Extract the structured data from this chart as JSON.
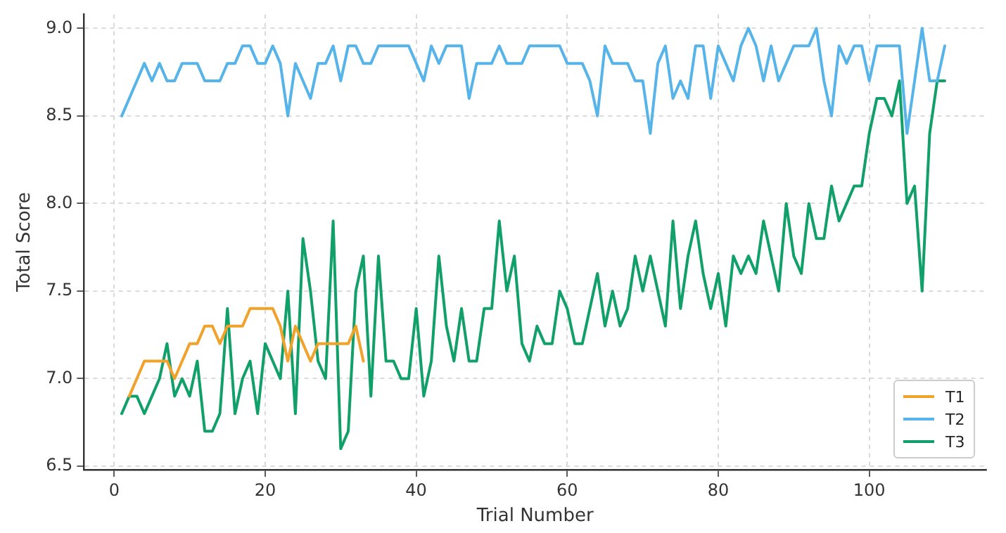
{
  "chart_data": {
    "type": "line",
    "xlabel": "Trial Number",
    "ylabel": "Total Score",
    "xlim": [
      -4,
      115.5
    ],
    "xticks": [
      0,
      20,
      40,
      60,
      80,
      100
    ],
    "ylim": [
      6.48,
      9.08
    ],
    "yticks": [
      {
        "value": 6.5,
        "label": "6.5"
      },
      {
        "value": 7,
        "label": "7.0"
      },
      {
        "value": 7.5,
        "label": "7.5"
      },
      {
        "value": 8,
        "label": "8.0"
      },
      {
        "value": 8.5,
        "label": "8.5"
      },
      {
        "value": 9,
        "label": "9.0"
      }
    ],
    "grid": true,
    "legend": "bottom right",
    "marker": "none",
    "line_style": "solid",
    "series": [
      {
        "name": "T1",
        "color": "#f0a22a",
        "x": [
          2,
          3,
          4,
          5,
          6,
          7,
          8,
          9,
          10,
          11,
          12,
          13,
          14,
          15,
          16,
          17,
          18,
          19,
          20,
          21,
          22,
          23,
          24,
          25,
          26,
          27,
          28,
          29,
          30,
          31,
          32,
          33
        ],
        "values": [
          6.9,
          7.0,
          7.1,
          7.1,
          7.1,
          7.1,
          7.0,
          7.1,
          7.2,
          7.2,
          7.3,
          7.3,
          7.2,
          7.3,
          7.3,
          7.3,
          7.4,
          7.4,
          7.4,
          7.4,
          7.3,
          7.1,
          7.3,
          7.2,
          7.1,
          7.2,
          7.2,
          7.2,
          7.2,
          7.2,
          7.3,
          7.1
        ]
      },
      {
        "name": "T2",
        "color": "#56b4e9",
        "x": [
          1,
          2,
          3,
          4,
          5,
          6,
          7,
          8,
          9,
          10,
          11,
          12,
          13,
          14,
          15,
          16,
          17,
          18,
          19,
          20,
          21,
          22,
          23,
          24,
          25,
          26,
          27,
          28,
          29,
          30,
          31,
          32,
          33,
          34,
          35,
          36,
          37,
          38,
          39,
          40,
          41,
          42,
          43,
          44,
          45,
          46,
          47,
          48,
          49,
          50,
          51,
          52,
          53,
          54,
          55,
          56,
          57,
          58,
          59,
          60,
          61,
          62,
          63,
          64,
          65,
          66,
          67,
          68,
          69,
          70,
          71,
          72,
          73,
          74,
          75,
          76,
          77,
          78,
          79,
          80,
          81,
          82,
          83,
          84,
          85,
          86,
          87,
          88,
          89,
          90,
          91,
          92,
          93,
          94,
          95,
          96,
          97,
          98,
          99,
          100,
          101,
          102,
          103,
          104,
          105,
          106,
          107,
          108,
          109,
          110
        ],
        "values": [
          8.5,
          8.6,
          8.7,
          8.8,
          8.7,
          8.8,
          8.7,
          8.7,
          8.8,
          8.8,
          8.8,
          8.7,
          8.7,
          8.7,
          8.8,
          8.8,
          8.9,
          8.9,
          8.8,
          8.8,
          8.9,
          8.8,
          8.5,
          8.8,
          8.7,
          8.6,
          8.8,
          8.8,
          8.9,
          8.7,
          8.9,
          8.9,
          8.8,
          8.8,
          8.9,
          8.9,
          8.9,
          8.9,
          8.9,
          8.8,
          8.7,
          8.9,
          8.8,
          8.9,
          8.9,
          8.9,
          8.6,
          8.8,
          8.8,
          8.8,
          8.9,
          8.8,
          8.8,
          8.8,
          8.9,
          8.9,
          8.9,
          8.9,
          8.9,
          8.8,
          8.8,
          8.8,
          8.7,
          8.5,
          8.9,
          8.8,
          8.8,
          8.8,
          8.7,
          8.7,
          8.4,
          8.8,
          8.9,
          8.6,
          8.7,
          8.6,
          8.9,
          8.9,
          8.6,
          8.9,
          8.8,
          8.7,
          8.9,
          9.0,
          8.9,
          8.7,
          8.9,
          8.7,
          8.8,
          8.9,
          8.9,
          8.9,
          9.0,
          8.7,
          8.5,
          8.9,
          8.8,
          8.9,
          8.9,
          8.7,
          8.9,
          8.9,
          8.9,
          8.9,
          8.4,
          8.7,
          9.0,
          8.7,
          8.7,
          8.9
        ]
      },
      {
        "name": "T3",
        "color": "#12a06a",
        "x": [
          1,
          2,
          3,
          4,
          5,
          6,
          7,
          8,
          9,
          10,
          11,
          12,
          13,
          14,
          15,
          16,
          17,
          18,
          19,
          20,
          21,
          22,
          23,
          24,
          25,
          26,
          27,
          28,
          29,
          30,
          31,
          32,
          33,
          34,
          35,
          36,
          37,
          38,
          39,
          40,
          41,
          42,
          43,
          44,
          45,
          46,
          47,
          48,
          49,
          50,
          51,
          52,
          53,
          54,
          55,
          56,
          57,
          58,
          59,
          60,
          61,
          62,
          63,
          64,
          65,
          66,
          67,
          68,
          69,
          70,
          71,
          72,
          73,
          74,
          75,
          76,
          77,
          78,
          79,
          80,
          81,
          82,
          83,
          84,
          85,
          86,
          87,
          88,
          89,
          90,
          91,
          92,
          93,
          94,
          95,
          96,
          97,
          98,
          99,
          100,
          101,
          102,
          103,
          104,
          105,
          106,
          107,
          108,
          109,
          110
        ],
        "values": [
          6.8,
          6.9,
          6.9,
          6.8,
          6.9,
          7.0,
          7.2,
          6.9,
          7.0,
          6.9,
          7.1,
          6.7,
          6.7,
          6.8,
          7.4,
          6.8,
          7.0,
          7.1,
          6.8,
          7.2,
          7.1,
          7.0,
          7.5,
          6.8,
          7.8,
          7.5,
          7.1,
          7.0,
          7.9,
          6.6,
          6.7,
          7.5,
          7.7,
          6.9,
          7.7,
          7.1,
          7.1,
          7.0,
          7.0,
          7.4,
          6.9,
          7.1,
          7.7,
          7.3,
          7.1,
          7.4,
          7.1,
          7.1,
          7.4,
          7.4,
          7.9,
          7.5,
          7.7,
          7.2,
          7.1,
          7.3,
          7.2,
          7.2,
          7.5,
          7.4,
          7.2,
          7.2,
          7.4,
          7.6,
          7.3,
          7.5,
          7.3,
          7.4,
          7.7,
          7.5,
          7.7,
          7.5,
          7.3,
          7.9,
          7.4,
          7.7,
          7.9,
          7.6,
          7.4,
          7.6,
          7.3,
          7.7,
          7.6,
          7.7,
          7.6,
          7.9,
          7.7,
          7.5,
          8.0,
          7.7,
          7.6,
          8.0,
          7.8,
          7.8,
          8.1,
          7.9,
          8.0,
          8.1,
          8.1,
          8.4,
          8.6,
          8.6,
          8.5,
          8.7,
          8.0,
          8.1,
          7.5,
          8.4,
          8.7,
          8.7
        ]
      }
    ]
  }
}
